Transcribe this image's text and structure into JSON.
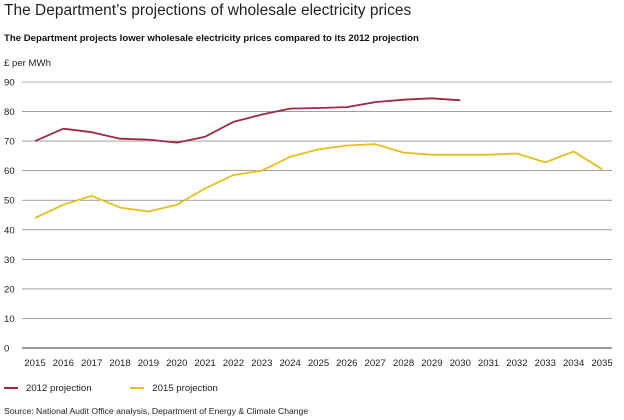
{
  "chart_data": {
    "type": "line",
    "title": "The Department’s projections of wholesale electricity prices",
    "subtitle": "The Department projects lower wholesale electricity prices compared to its 2012 projection",
    "ylabel": "£ per MWh",
    "xlabel": "",
    "ylim": [
      0,
      90
    ],
    "yticks": [
      0,
      10,
      20,
      30,
      40,
      50,
      60,
      70,
      80,
      90
    ],
    "grid": true,
    "legend_position": "bottom-left",
    "x": [
      "2015",
      "2016",
      "2017",
      "2018",
      "2019",
      "2020",
      "2021",
      "2022",
      "2023",
      "2024",
      "2025",
      "2026",
      "2027",
      "2028",
      "2029",
      "2030",
      "2031",
      "2032",
      "2033",
      "2034",
      "2035"
    ],
    "series": [
      {
        "name": "2012 projection",
        "color": "#9b2a45",
        "values": [
          70,
          74.2,
          73,
          70.8,
          70.5,
          69.5,
          71.5,
          76.5,
          79,
          81,
          81.2,
          81.5,
          83.2,
          84,
          84.5,
          83.8,
          null,
          null,
          null,
          null,
          null
        ]
      },
      {
        "name": "2015 projection",
        "color": "#e4bf1f",
        "values": [
          44,
          48.5,
          51.5,
          47.5,
          46.2,
          48.5,
          54,
          58.5,
          60,
          64.7,
          67.2,
          68.5,
          69,
          66.1,
          65.4,
          65.4,
          65.4,
          65.8,
          62.8,
          66.5,
          60.5
        ]
      }
    ]
  },
  "source": "Source: National Audit Office analysis, Department of Energy & Climate Change"
}
